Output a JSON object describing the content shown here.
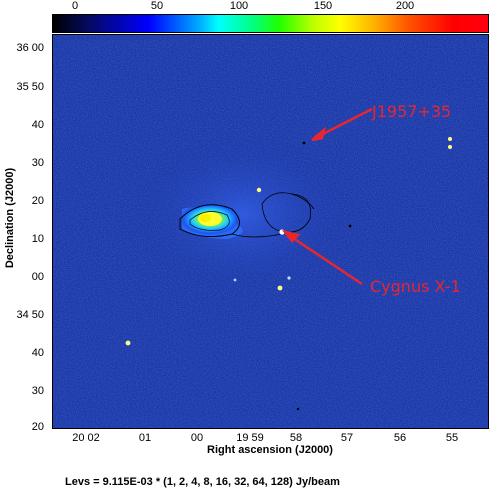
{
  "colorbar": {
    "ticks": [
      "0",
      "50",
      "100",
      "150",
      "200"
    ],
    "range": [
      0,
      225
    ]
  },
  "axes": {
    "xlabel": "Right ascension (J2000)",
    "ylabel": "Declination (J2000)",
    "x_ticks": [
      "20 02",
      "01",
      "00",
      "19 59",
      "58",
      "57",
      "56",
      "55"
    ],
    "y_ticks": [
      "36 00",
      "35 50",
      "40",
      "30",
      "20",
      "10",
      "00",
      "34 50",
      "40",
      "30",
      "20"
    ]
  },
  "annotations": {
    "source1": "J1957+35",
    "source2": "Cygnus X-1"
  },
  "footer": {
    "levels": "Levs = 9.115E-03 * (1, 2, 4, 8, 16, 32, 64, 128) Jy/beam"
  },
  "colors": {
    "background_map": "#1c35a8",
    "annotation_red": "#e8262e"
  }
}
